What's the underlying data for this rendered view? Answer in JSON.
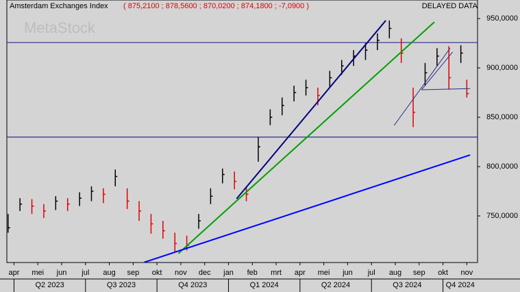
{
  "chart_data": {
    "type": "hlc",
    "title": "Amsterdam Exchanges Index",
    "quote": [
      "875,2100",
      "878,5600",
      "870,0200",
      "874,1800",
      "-7,0900"
    ],
    "status": "DELAYED DATA",
    "watermark": "MetaStock",
    "x": [
      -0.25,
      0.25,
      0.75,
      1.25,
      1.75,
      2.25,
      2.75,
      3.25,
      3.75,
      4.25,
      4.75,
      5.25,
      5.75,
      6.25,
      6.75,
      7.25,
      7.75,
      8.25,
      8.75,
      9.25,
      9.75,
      10.25,
      10.75,
      11.25,
      11.75,
      12.25,
      12.75,
      13.25,
      13.75,
      14.25,
      14.75,
      15.25,
      15.75,
      16.25,
      16.75,
      17.25,
      17.75,
      18.25,
      18.75,
      19.0
    ],
    "high": [
      752,
      768,
      767,
      762,
      770,
      768,
      774,
      780,
      778,
      797,
      778,
      765,
      752,
      745,
      733,
      730,
      752,
      778,
      798,
      795,
      780,
      830,
      858,
      870,
      882,
      888,
      880,
      897,
      908,
      918,
      925,
      935,
      948,
      930,
      880,
      905,
      920,
      922,
      923,
      888
    ],
    "low": [
      733,
      755,
      752,
      748,
      756,
      755,
      760,
      765,
      763,
      780,
      757,
      745,
      732,
      727,
      714,
      715,
      737,
      762,
      783,
      777,
      765,
      805,
      842,
      852,
      866,
      872,
      862,
      880,
      893,
      902,
      908,
      918,
      930,
      905,
      840,
      882,
      902,
      878,
      905,
      870
    ],
    "close": [
      738,
      762,
      760,
      755,
      765,
      762,
      768,
      775,
      772,
      790,
      765,
      755,
      742,
      735,
      722,
      720,
      745,
      770,
      792,
      785,
      772,
      820,
      850,
      862,
      875,
      880,
      872,
      890,
      902,
      912,
      918,
      928,
      940,
      915,
      855,
      895,
      912,
      890,
      915,
      874
    ],
    "up_color": "#000000",
    "down_color": "#e00000",
    "hlines": [
      {
        "y": 925.7,
        "color": "#2a2a8a"
      },
      {
        "y": 829.9,
        "color": "#2a2a8a"
      }
    ],
    "lines": [
      {
        "x": [
          9.34,
          15.6
        ],
        "y": [
          767.4,
          948
        ],
        "color": "#000080",
        "width": 2
      },
      {
        "x": [
          6.9,
          17.64
        ],
        "y": [
          712,
          946.5
        ],
        "color": "#00a000",
        "width": 2
      },
      {
        "x": [
          5.46,
          19.14
        ],
        "y": [
          703,
          811.8
        ],
        "color": "#0000ff",
        "width": 2
      },
      {
        "x": [
          15.95,
          18.3
        ],
        "y": [
          841.7,
          920
        ],
        "color": "#2a2a8a",
        "width": 1
      },
      {
        "x": [
          17.1,
          18.4
        ],
        "y": [
          877.8,
          916
        ],
        "color": "#2a2a8a",
        "width": 1
      },
      {
        "x": [
          17.1,
          19.14
        ],
        "y": [
          877.8,
          879
        ],
        "color": "#2a2a8a",
        "width": 1
      }
    ],
    "xlim": [
      -0.3,
      19.45
    ],
    "ylim": [
      702.8,
      968.8
    ],
    "yticks": [
      {
        "value": 750,
        "label": "750,0000"
      },
      {
        "value": 800,
        "label": "800,0000"
      },
      {
        "value": 850,
        "label": "850,0000"
      },
      {
        "value": 900,
        "label": "900,0000"
      },
      {
        "value": 950,
        "label": "950,0000"
      }
    ],
    "xticks": [
      {
        "value": 0,
        "label": "apr"
      },
      {
        "value": 1,
        "label": "mei"
      },
      {
        "value": 2,
        "label": "jun"
      },
      {
        "value": 3,
        "label": "jul"
      },
      {
        "value": 4,
        "label": "aug"
      },
      {
        "value": 5,
        "label": "sep"
      },
      {
        "value": 6,
        "label": "okt"
      },
      {
        "value": 7,
        "label": "nov"
      },
      {
        "value": 8,
        "label": "dec"
      },
      {
        "value": 9,
        "label": "jan"
      },
      {
        "value": 10,
        "label": "feb"
      },
      {
        "value": 11,
        "label": "mrt"
      },
      {
        "value": 12,
        "label": "apr"
      },
      {
        "value": 13,
        "label": "mei"
      },
      {
        "value": 14,
        "label": "jun"
      },
      {
        "value": 15,
        "label": "jul"
      },
      {
        "value": 16,
        "label": "aug"
      },
      {
        "value": 17,
        "label": "sep"
      },
      {
        "value": 18,
        "label": "okt"
      },
      {
        "value": 19,
        "label": "nov"
      }
    ],
    "quarters": [
      {
        "value": 0,
        "label": "Q2 2023"
      },
      {
        "value": 3,
        "label": "Q3 2023"
      },
      {
        "value": 6,
        "label": "Q4 2023"
      },
      {
        "value": 9,
        "label": "Q1 2024"
      },
      {
        "value": 12,
        "label": "Q2 2024"
      },
      {
        "value": 15,
        "label": "Q3 2024"
      },
      {
        "value": 18,
        "label": "Q4 2024"
      }
    ]
  }
}
